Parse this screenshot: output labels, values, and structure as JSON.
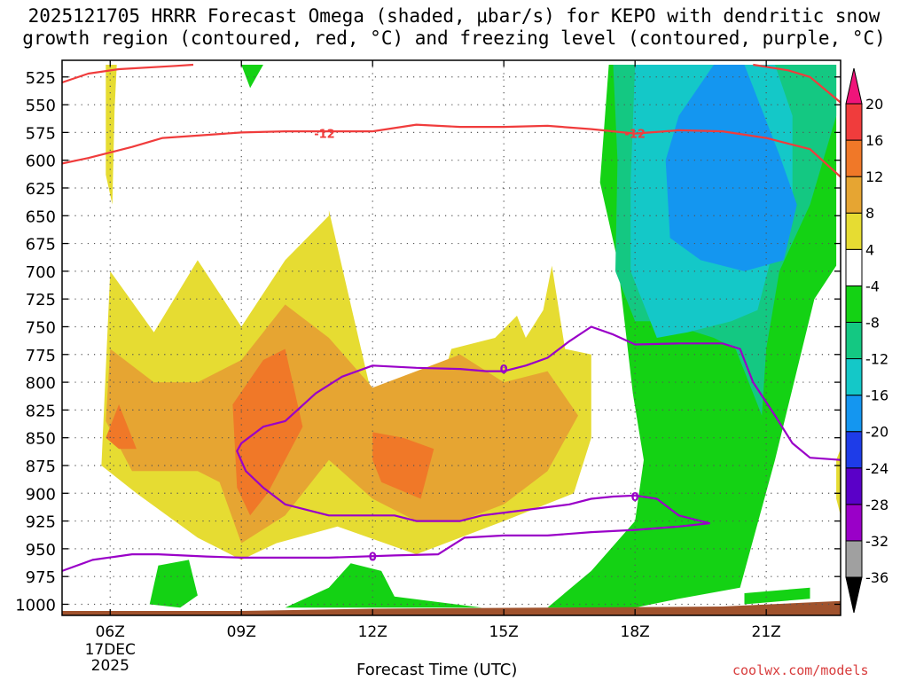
{
  "page": {
    "title_line1": "2025121705 HRRR Forecast Omega (shaded, μbar/s) for KEPO with dendritic snow",
    "title_line2": "growth region (contoured, red, °C) and freezing level (contoured, purple, °C)",
    "credit": "coolwx.com/models"
  },
  "chart_data": {
    "type": "heatmap",
    "title": "2025121705 HRRR Forecast Omega (shaded, μbar/s) for KEPO with dendritic snow growth region (contoured, red, °C) and freezing level (contoured, purple, °C)",
    "xlabel": "Forecast Time (UTC)",
    "ylabel": "",
    "x_range": [
      4.9,
      22.7
    ],
    "y_range": [
      1010,
      510
    ],
    "y_axis": "pressure (mb), inverted",
    "grid": true,
    "x_ticks": [
      {
        "x": 6,
        "label": "06Z",
        "sub1": "17DEC",
        "sub2": "2025"
      },
      {
        "x": 9,
        "label": "09Z"
      },
      {
        "x": 12,
        "label": "12Z"
      },
      {
        "x": 15,
        "label": "15Z"
      },
      {
        "x": 18,
        "label": "18Z"
      },
      {
        "x": 21,
        "label": "21Z"
      }
    ],
    "y_ticks": [
      525,
      550,
      575,
      600,
      625,
      650,
      675,
      700,
      725,
      750,
      775,
      800,
      825,
      850,
      875,
      900,
      925,
      950,
      975,
      1000
    ],
    "colorbar": {
      "levels": [
        -36,
        -32,
        -28,
        -24,
        -20,
        -16,
        -12,
        -8,
        -4,
        4,
        8,
        12,
        16,
        20
      ],
      "colors": [
        "#000000",
        "#a0a0a0",
        "#9a00c8",
        "#5a00c8",
        "#1e3ce8",
        "#1496f0",
        "#14c8c8",
        "#14c882",
        "#14d214",
        "#ffffff",
        "#e6dc32",
        "#e6a532",
        "#f07828",
        "#f03c3c",
        "#f0147a"
      ]
    },
    "shaded_regions": [
      {
        "name": "omega 4 to 8",
        "color": "#e6dc32",
        "outline": [
          [
            5.9,
            613
          ],
          [
            6.05,
            640
          ],
          [
            6.1,
            555
          ],
          [
            6.15,
            514
          ],
          [
            5.9,
            514
          ]
        ]
      },
      {
        "name": "omega 4 to 8",
        "color": "#e6dc32",
        "outline": [
          [
            5.8,
            875
          ],
          [
            6.0,
            700
          ],
          [
            7.0,
            755
          ],
          [
            8.0,
            690
          ],
          [
            9.0,
            750
          ],
          [
            10.0,
            690
          ],
          [
            11.0,
            650
          ],
          [
            11.0,
            645
          ],
          [
            11.9,
            798
          ],
          [
            12.8,
            905
          ],
          [
            13.8,
            770
          ],
          [
            14.8,
            760
          ],
          [
            15.3,
            740
          ],
          [
            15.5,
            760
          ],
          [
            15.9,
            735
          ],
          [
            16.1,
            695
          ],
          [
            16.4,
            770
          ],
          [
            17.0,
            775
          ],
          [
            17.0,
            850
          ],
          [
            16.6,
            900
          ],
          [
            15.0,
            925
          ],
          [
            13.0,
            955
          ],
          [
            11.2,
            930
          ],
          [
            9.8,
            945
          ],
          [
            9.0,
            960
          ],
          [
            8.0,
            940
          ],
          [
            6.6,
            900
          ]
        ]
      },
      {
        "name": "omega 4 to 8",
        "color": "#e6dc32",
        "outline": [
          [
            22.6,
            870
          ],
          [
            22.7,
            860
          ],
          [
            22.7,
            920
          ],
          [
            22.6,
            905
          ]
        ]
      },
      {
        "name": "omega 8 to 12",
        "color": "#e6a532",
        "outline": [
          [
            5.9,
            835
          ],
          [
            6.0,
            770
          ],
          [
            7.0,
            800
          ],
          [
            8.0,
            800
          ],
          [
            9.0,
            780
          ],
          [
            10.0,
            730
          ],
          [
            11.0,
            760
          ],
          [
            12.0,
            805
          ],
          [
            13.0,
            790
          ],
          [
            14.0,
            775
          ],
          [
            15.0,
            800
          ],
          [
            16.0,
            790
          ],
          [
            16.7,
            830
          ],
          [
            16.0,
            880
          ],
          [
            15.0,
            910
          ],
          [
            14.0,
            925
          ],
          [
            13.0,
            925
          ],
          [
            12.0,
            905
          ],
          [
            11.0,
            870
          ],
          [
            10.0,
            920
          ],
          [
            9.0,
            945
          ],
          [
            8.5,
            890
          ],
          [
            8.0,
            880
          ],
          [
            7.0,
            880
          ],
          [
            6.5,
            880
          ]
        ]
      },
      {
        "name": "omega 12 to 16",
        "color": "#f07828",
        "outline": [
          [
            5.9,
            850
          ],
          [
            6.2,
            820
          ],
          [
            6.6,
            860
          ],
          [
            6.2,
            860
          ]
        ]
      },
      {
        "name": "omega 12 to 16",
        "color": "#f07828",
        "outline": [
          [
            8.8,
            820
          ],
          [
            9.5,
            780
          ],
          [
            10.0,
            770
          ],
          [
            10.4,
            840
          ],
          [
            9.6,
            900
          ],
          [
            9.2,
            920
          ],
          [
            8.9,
            895
          ]
        ]
      },
      {
        "name": "omega 12 to 16",
        "color": "#f07828",
        "outline": [
          [
            12.0,
            845
          ],
          [
            12.7,
            850
          ],
          [
            13.4,
            860
          ],
          [
            13.1,
            905
          ],
          [
            12.2,
            890
          ],
          [
            12.0,
            870
          ]
        ]
      },
      {
        "name": "omega -4 to -8",
        "color": "#14d214",
        "outline": [
          [
            9.0,
            514
          ],
          [
            9.5,
            514
          ],
          [
            9.2,
            535
          ]
        ]
      },
      {
        "name": "omega -4 to -8",
        "color": "#14d214",
        "outline": [
          [
            16.0,
            1003
          ],
          [
            17.0,
            970
          ],
          [
            18.0,
            925
          ],
          [
            18.2,
            870
          ],
          [
            17.95,
            810
          ],
          [
            17.6,
            690
          ],
          [
            17.2,
            620
          ],
          [
            17.4,
            514
          ],
          [
            22.6,
            514
          ],
          [
            22.6,
            695
          ],
          [
            22.1,
            725
          ],
          [
            21.2,
            870
          ],
          [
            20.4,
            985
          ],
          [
            19.0,
            995
          ],
          [
            18.0,
            1003
          ]
        ]
      },
      {
        "name": "omega -4 to -8",
        "color": "#14d214",
        "outline": [
          [
            6.9,
            1000
          ],
          [
            7.1,
            965
          ],
          [
            7.8,
            960
          ],
          [
            8.0,
            992
          ],
          [
            7.6,
            1003
          ]
        ]
      },
      {
        "name": "omega -4 to -8",
        "color": "#14d214",
        "outline": [
          [
            10.0,
            1003
          ],
          [
            11.0,
            985
          ],
          [
            11.5,
            963
          ],
          [
            12.2,
            970
          ],
          [
            12.5,
            993
          ],
          [
            14.5,
            1003
          ]
        ]
      },
      {
        "name": "omega -4 to -8",
        "color": "#14d214",
        "outline": [
          [
            20.5,
            990
          ],
          [
            22.0,
            985
          ],
          [
            22.0,
            995
          ],
          [
            20.5,
            1000
          ]
        ]
      },
      {
        "name": "omega -8 to -12",
        "color": "#14c882",
        "outline": [
          [
            17.5,
            514
          ],
          [
            22.6,
            514
          ],
          [
            22.6,
            560
          ],
          [
            22.0,
            640
          ],
          [
            21.3,
            700
          ],
          [
            21.0,
            770
          ],
          [
            20.9,
            830
          ],
          [
            20.3,
            770
          ],
          [
            19.8,
            760
          ],
          [
            18.6,
            745
          ],
          [
            18.0,
            745
          ],
          [
            17.55,
            700
          ],
          [
            17.6,
            600
          ]
        ]
      },
      {
        "name": "omega -12 to -16",
        "color": "#14c8c8",
        "outline": [
          [
            18.0,
            514
          ],
          [
            21.2,
            514
          ],
          [
            21.6,
            560
          ],
          [
            21.6,
            640
          ],
          [
            21.1,
            690
          ],
          [
            20.8,
            735
          ],
          [
            20.2,
            745
          ],
          [
            19.2,
            755
          ],
          [
            18.5,
            760
          ],
          [
            17.9,
            700
          ],
          [
            17.9,
            620
          ]
        ]
      },
      {
        "name": "omega -16 to -20",
        "color": "#1496f0",
        "outline": [
          [
            19.8,
            514
          ],
          [
            20.5,
            514
          ],
          [
            21.3,
            595
          ],
          [
            21.7,
            640
          ],
          [
            21.4,
            690
          ],
          [
            20.5,
            700
          ],
          [
            19.5,
            690
          ],
          [
            18.8,
            670
          ],
          [
            18.7,
            600
          ],
          [
            19.0,
            560
          ]
        ]
      }
    ],
    "contours": [
      {
        "name": "dendritic growth -12",
        "color": "#f03c3c",
        "label": "-12",
        "label_at": [
          [
            10.9,
            576
          ],
          [
            18.0,
            576
          ]
        ],
        "points": [
          [
            4.9,
            603
          ],
          [
            5.5,
            598
          ],
          [
            6.5,
            588
          ],
          [
            7.2,
            580
          ],
          [
            9.0,
            575
          ],
          [
            10.0,
            574
          ],
          [
            11.5,
            574
          ],
          [
            12.0,
            574
          ],
          [
            13.0,
            568
          ],
          [
            14.0,
            570
          ],
          [
            15.0,
            570
          ],
          [
            16.0,
            569
          ],
          [
            17.0,
            572
          ],
          [
            18.0,
            576
          ],
          [
            19.0,
            573
          ],
          [
            20.0,
            574
          ],
          [
            21.0,
            580
          ],
          [
            22.0,
            590
          ],
          [
            22.7,
            615
          ]
        ]
      },
      {
        "name": "dendritic growth -12",
        "color": "#f03c3c",
        "label": "",
        "label_at": [],
        "points": [
          [
            4.9,
            530
          ],
          [
            5.5,
            522
          ],
          [
            6.2,
            518
          ],
          [
            7.5,
            515
          ],
          [
            7.9,
            514
          ]
        ]
      },
      {
        "name": "dendritic growth -12",
        "color": "#f03c3c",
        "label": "",
        "label_at": [],
        "points": [
          [
            20.7,
            514
          ],
          [
            21.5,
            519
          ],
          [
            22.0,
            525
          ],
          [
            22.7,
            548
          ]
        ]
      },
      {
        "name": "freezing level 0",
        "color": "#9a00c8",
        "label": "0",
        "label_at": [
          [
            15.0,
            788
          ],
          [
            18.0,
            903
          ],
          [
            12.0,
            957
          ]
        ],
        "points": [
          [
            4.9,
            970
          ],
          [
            5.6,
            960
          ],
          [
            6.5,
            955
          ],
          [
            7.1,
            955
          ],
          [
            8.2,
            957
          ],
          [
            9.0,
            958
          ],
          [
            11.0,
            958
          ],
          [
            12.5,
            956
          ],
          [
            13.5,
            955
          ],
          [
            13.9,
            945
          ],
          [
            14.1,
            940
          ],
          [
            15.0,
            938
          ],
          [
            16.0,
            938
          ],
          [
            17.0,
            935
          ],
          [
            18.0,
            933
          ],
          [
            19.0,
            930
          ],
          [
            19.7,
            927
          ],
          [
            19.0,
            920
          ],
          [
            18.5,
            905
          ],
          [
            18.0,
            902
          ],
          [
            17.5,
            903
          ],
          [
            17.0,
            905
          ],
          [
            16.5,
            910
          ],
          [
            15.5,
            915
          ],
          [
            14.5,
            920
          ],
          [
            14.0,
            925
          ],
          [
            13.0,
            925
          ],
          [
            12.5,
            920
          ],
          [
            11.0,
            920
          ],
          [
            10.0,
            910
          ],
          [
            9.5,
            895
          ],
          [
            9.1,
            880
          ],
          [
            8.9,
            862
          ],
          [
            9.0,
            855
          ],
          [
            9.5,
            840
          ],
          [
            10.0,
            835
          ],
          [
            10.7,
            810
          ],
          [
            11.3,
            795
          ],
          [
            12.0,
            785
          ],
          [
            13.0,
            787
          ],
          [
            14.0,
            788
          ],
          [
            14.6,
            790
          ],
          [
            15.0,
            790
          ],
          [
            15.5,
            785
          ],
          [
            16.0,
            778
          ],
          [
            16.5,
            763
          ],
          [
            17.0,
            750
          ],
          [
            17.5,
            757
          ],
          [
            18.0,
            766
          ],
          [
            19.0,
            765
          ],
          [
            20.0,
            765
          ],
          [
            20.4,
            770
          ],
          [
            20.7,
            800
          ],
          [
            21.2,
            830
          ],
          [
            21.6,
            855
          ],
          [
            22.0,
            868
          ],
          [
            22.7,
            870
          ]
        ]
      }
    ],
    "ground": {
      "color": "#a0522d",
      "points": [
        [
          4.9,
          1006
        ],
        [
          9.0,
          1006
        ],
        [
          12.0,
          1004
        ],
        [
          16.0,
          1003
        ],
        [
          20.0,
          1002
        ],
        [
          22.7,
          997
        ]
      ]
    }
  }
}
